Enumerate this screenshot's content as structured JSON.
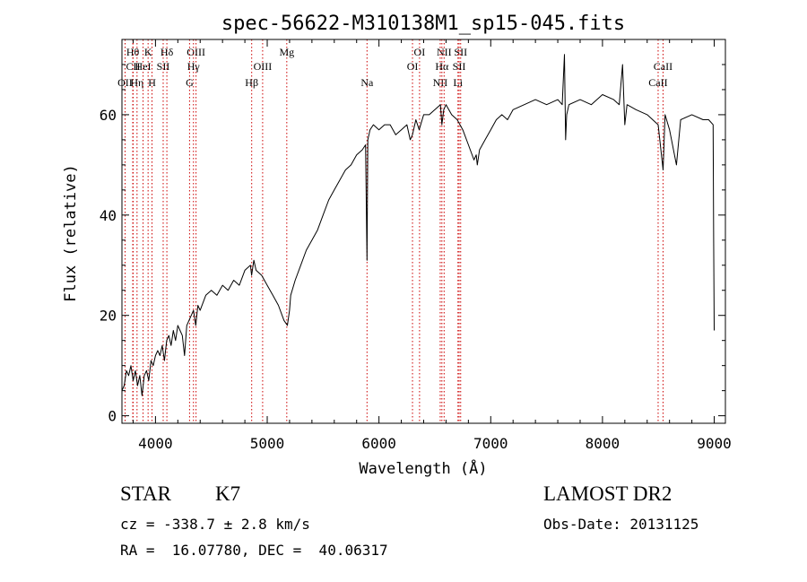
{
  "chart_data": {
    "type": "line",
    "title": "spec-56622-M310138M1_sp15-045.fits",
    "xlabel": "Wavelength (Å)",
    "ylabel": "Flux (relative)",
    "xlim": [
      3700,
      9100
    ],
    "ylim": [
      -1.5,
      75
    ],
    "xticks": [
      4000,
      5000,
      6000,
      7000,
      8000,
      9000
    ],
    "yticks": [
      0,
      20,
      40,
      60
    ],
    "line_color": "#000000",
    "marker_color": "#cc0000",
    "series": [
      {
        "x": [
          3700,
          3720,
          3740,
          3760,
          3780,
          3800,
          3820,
          3840,
          3860,
          3880,
          3900,
          3920,
          3940,
          3960,
          3980,
          4000,
          4020,
          4040,
          4060,
          4080,
          4100,
          4120,
          4140,
          4160,
          4180,
          4200,
          4220,
          4240,
          4260,
          4280,
          4300,
          4320,
          4340,
          4360,
          4380,
          4400,
          4450,
          4500,
          4550,
          4600,
          4650,
          4700,
          4750,
          4800,
          4850,
          4860,
          4880,
          4900,
          4950,
          5000,
          5050,
          5100,
          5150,
          5180,
          5200,
          5210,
          5250,
          5300,
          5350,
          5400,
          5450,
          5500,
          5550,
          5600,
          5650,
          5700,
          5750,
          5800,
          5850,
          5880,
          5893,
          5900,
          5920,
          5950,
          6000,
          6050,
          6100,
          6150,
          6200,
          6250,
          6280,
          6300,
          6330,
          6360,
          6400,
          6450,
          6500,
          6550,
          6563,
          6580,
          6600,
          6650,
          6700,
          6750,
          6800,
          6850,
          6870,
          6880,
          6900,
          6950,
          7000,
          7050,
          7100,
          7150,
          7200,
          7300,
          7400,
          7500,
          7600,
          7640,
          7660,
          7670,
          7680,
          7700,
          7800,
          7900,
          8000,
          8100,
          8150,
          8180,
          8200,
          8220,
          8300,
          8400,
          8498,
          8542,
          8560,
          8600,
          8662,
          8700,
          8800,
          8900,
          8950,
          8990,
          8995,
          9000
        ],
        "y": [
          5,
          6,
          9,
          8,
          10,
          7,
          9,
          6,
          8,
          4,
          8,
          9,
          7,
          11,
          10,
          12,
          13,
          12,
          14,
          11,
          15,
          16,
          14,
          17,
          15,
          18,
          17,
          16,
          12,
          18,
          19,
          20,
          21,
          18,
          22,
          21,
          24,
          25,
          24,
          26,
          25,
          27,
          26,
          29,
          30,
          28,
          31,
          29,
          28,
          26,
          24,
          22,
          19,
          18,
          21,
          24,
          27,
          30,
          33,
          35,
          37,
          40,
          43,
          45,
          47,
          49,
          50,
          52,
          53,
          54,
          31,
          55,
          57,
          58,
          57,
          58,
          58,
          56,
          57,
          58,
          55,
          56,
          59,
          57,
          60,
          60,
          61,
          62,
          58,
          61,
          62,
          60,
          59,
          57,
          54,
          51,
          52,
          50,
          53,
          55,
          57,
          59,
          60,
          59,
          61,
          62,
          63,
          62,
          63,
          62,
          72,
          55,
          60,
          62,
          63,
          62,
          64,
          63,
          62,
          70,
          58,
          62,
          61,
          60,
          58,
          49,
          60,
          57,
          50,
          59,
          60,
          59,
          59,
          58,
          35,
          17
        ]
      }
    ],
    "line_markers": [
      {
        "label": "Hθ",
        "x": 3797,
        "row": 1
      },
      {
        "label": "CII",
        "x": 3800,
        "row": 2
      },
      {
        "label": "OII",
        "x": 3728,
        "row": 3
      },
      {
        "label": "Hη",
        "x": 3835,
        "row": 3
      },
      {
        "label": "HeI",
        "x": 3889,
        "row": 2
      },
      {
        "label": "K",
        "x": 3934,
        "row": 1
      },
      {
        "label": "H",
        "x": 3969,
        "row": 3
      },
      {
        "label": "SII",
        "x": 4069,
        "row": 2
      },
      {
        "label": "Hδ",
        "x": 4102,
        "row": 1
      },
      {
        "label": "OIII",
        "x": 4363,
        "row": 1
      },
      {
        "label": "Hγ",
        "x": 4340,
        "row": 2
      },
      {
        "label": "G",
        "x": 4305,
        "row": 3
      },
      {
        "label": "OIII",
        "x": 4959,
        "row": 2
      },
      {
        "label": "Hβ",
        "x": 4861,
        "row": 3
      },
      {
        "label": "Mg",
        "x": 5175,
        "row": 1
      },
      {
        "label": "Na",
        "x": 5893,
        "row": 3
      },
      {
        "label": "OI",
        "x": 6363,
        "row": 1
      },
      {
        "label": "OI",
        "x": 6300,
        "row": 2
      },
      {
        "label": "NII",
        "x": 6583,
        "row": 1
      },
      {
        "label": "NII",
        "x": 6548,
        "row": 3
      },
      {
        "label": "Hα",
        "x": 6563,
        "row": 2
      },
      {
        "label": "SII",
        "x": 6731,
        "row": 1
      },
      {
        "label": "SII",
        "x": 6717,
        "row": 2
      },
      {
        "label": "Li",
        "x": 6707,
        "row": 3
      },
      {
        "label": "CaII",
        "x": 8542,
        "row": 2
      },
      {
        "label": "CaII",
        "x": 8498,
        "row": 3
      }
    ]
  },
  "info": {
    "object_class": "STAR",
    "subclass": "K7",
    "survey": "LAMOST DR2",
    "redshift_line": "cz = -338.7 ± 2.8 km/s",
    "obs_date_line": "Obs-Date: 20131125",
    "coords_line": "RA =  16.07780, DEC =  40.06317"
  }
}
